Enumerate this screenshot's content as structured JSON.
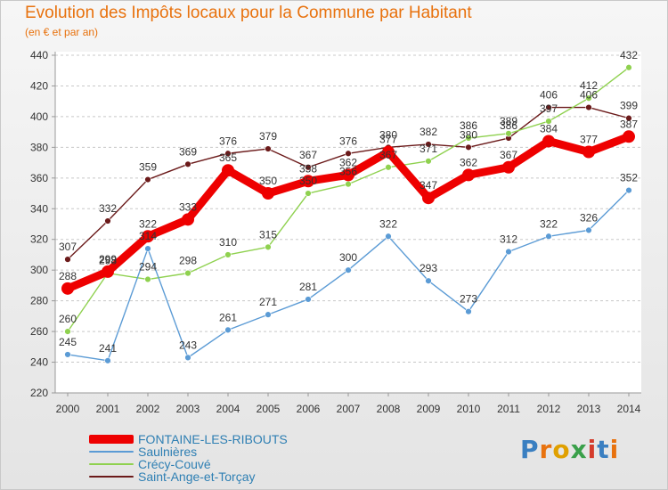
{
  "title": "Evolution des Impôts locaux pour la Commune par Habitant",
  "subtitle": "(en € et par an)",
  "logo": {
    "text": "Proxiti",
    "letter_colors": [
      "#3a7fc1",
      "#e8720e",
      "#e0a000",
      "#3aa04a",
      "#d43c2c",
      "#3a7fc1",
      "#e8720e"
    ]
  },
  "chart_data": {
    "type": "line",
    "title": "Evolution des Impôts locaux pour la Commune par Habitant",
    "ylabel": "(en € et par an)",
    "xlabel": "",
    "x": [
      2000,
      2001,
      2002,
      2003,
      2004,
      2005,
      2006,
      2007,
      2008,
      2009,
      2010,
      2011,
      2012,
      2013,
      2014
    ],
    "ylim": [
      220,
      440
    ],
    "yticks": [
      220,
      240,
      260,
      280,
      300,
      320,
      340,
      360,
      380,
      400,
      420,
      440
    ],
    "grid": "horizontal dashed",
    "legend_position": "bottom-left",
    "series": [
      {
        "name": "Saint-Ange-et-Torçay",
        "color": "#6b1a1a",
        "values": [
          307,
          332,
          359,
          369,
          376,
          379,
          367,
          376,
          380,
          382,
          380,
          386,
          406,
          406,
          399
        ],
        "labels": [
          "307",
          "332",
          "359",
          "369",
          "376",
          "379",
          "367",
          "376",
          "380",
          "382",
          "380",
          "386",
          "406",
          "406",
          "399"
        ]
      },
      {
        "name": "Crécy-Couvé",
        "color": "#8fd14f",
        "values": [
          260,
          298,
          294,
          298,
          310,
          315,
          350,
          356,
          367,
          371,
          386,
          389,
          397,
          412,
          432
        ],
        "labels": [
          "260",
          "298",
          "294",
          "298",
          "310",
          "315",
          "350",
          "356",
          "367",
          "371",
          "386",
          "389",
          "397",
          "412",
          "432"
        ]
      },
      {
        "name": "Saulnières",
        "color": "#5b9bd5",
        "values": [
          245,
          241,
          314,
          243,
          261,
          271,
          281,
          300,
          322,
          293,
          273,
          312,
          322,
          326,
          352
        ],
        "labels": [
          "245",
          "241",
          "314",
          "243",
          "261",
          "271",
          "281",
          "300",
          "322",
          "293",
          "273",
          "312",
          "322",
          "326",
          "352"
        ]
      },
      {
        "name": "FONTAINE-LES-RIBOUTS",
        "color": "#ee0000",
        "values": [
          288,
          299,
          322,
          333,
          365,
          350,
          358,
          362,
          377,
          347,
          362,
          367,
          384,
          377,
          387
        ],
        "labels": [
          "288",
          "299",
          "322",
          "333",
          "365",
          "350",
          "358",
          "362",
          "377",
          "347",
          "362",
          "367",
          "384",
          "377",
          "387"
        ]
      }
    ],
    "legend": [
      {
        "name": "FONTAINE-LES-RIBOUTS",
        "color": "#ee0000"
      },
      {
        "name": "Saulnières",
        "color": "#5b9bd5"
      },
      {
        "name": "Crécy-Couvé",
        "color": "#8fd14f"
      },
      {
        "name": "Saint-Ange-et-Torçay",
        "color": "#6b1a1a"
      }
    ]
  }
}
